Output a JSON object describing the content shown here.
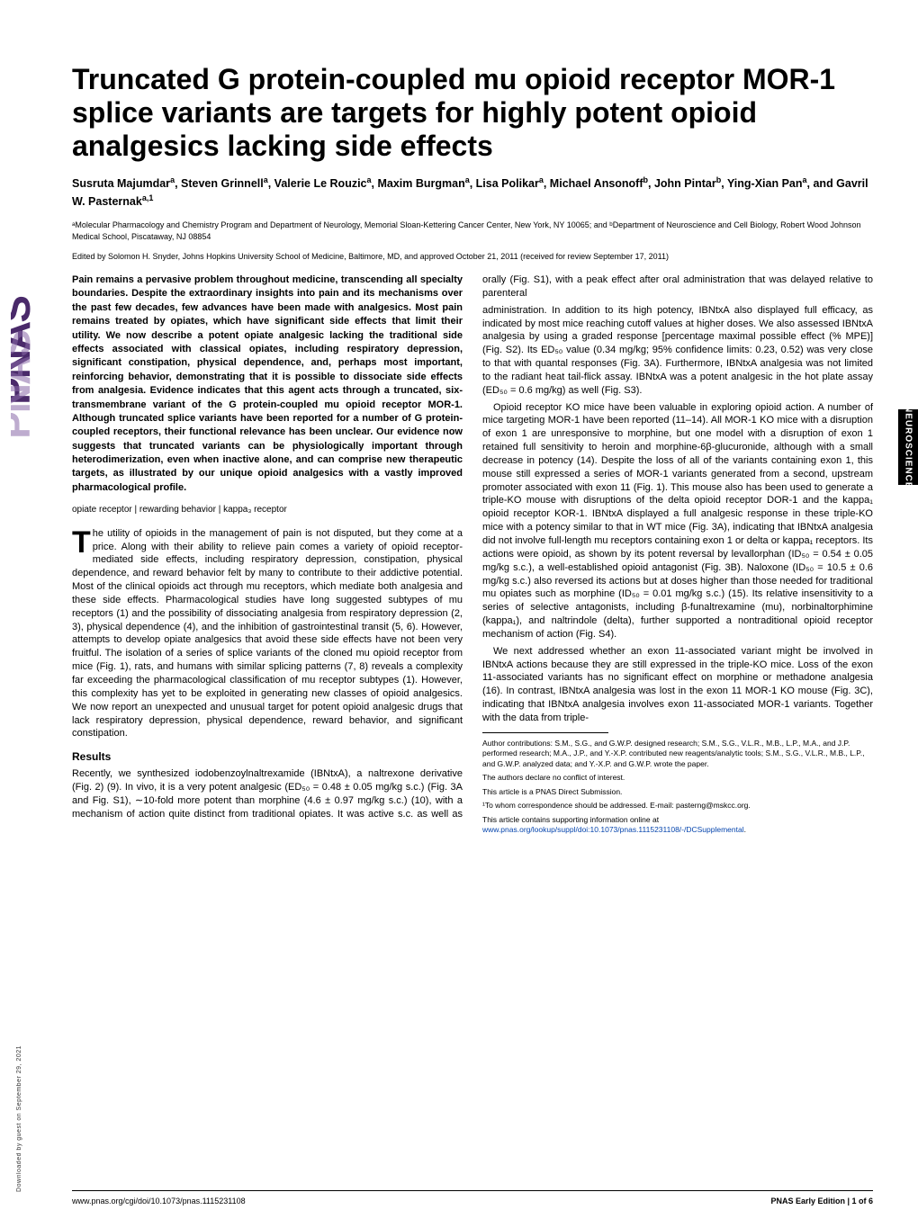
{
  "journal": {
    "logo_text": "PNAS",
    "logo_fill": "#4a2a6a",
    "side_tab": "NEUROSCIENCE",
    "downloaded": "Downloaded by guest on September 29, 2021"
  },
  "title": "Truncated G protein-coupled mu opioid receptor MOR-1 splice variants are targets for highly potent opioid analgesics lacking side effects",
  "authors_html": "Susruta Majumdar<sup>a</sup>, Steven Grinnell<sup>a</sup>, Valerie Le Rouzic<sup>a</sup>, Maxim Burgman<sup>a</sup>, Lisa Polikar<sup>a</sup>, Michael Ansonoff<sup>b</sup>, John Pintar<sup>b</sup>, Ying-Xian Pan<sup>a</sup>, and Gavril W. Pasternak<sup>a,1</sup>",
  "affiliations": "ᵃMolecular Pharmacology and Chemistry Program and Department of Neurology, Memorial Sloan-Kettering Cancer Center, New York, NY 10065; and ᵇDepartment of Neuroscience and Cell Biology, Robert Wood Johnson Medical School, Piscataway, NJ 08854",
  "edited": "Edited by Solomon H. Snyder, Johns Hopkins University School of Medicine, Baltimore, MD, and approved October 21, 2011 (received for review September 17, 2011)",
  "abstract": "Pain remains a pervasive problem throughout medicine, transcending all specialty boundaries. Despite the extraordinary insights into pain and its mechanisms over the past few decades, few advances have been made with analgesics. Most pain remains treated by opiates, which have significant side effects that limit their utility. We now describe a potent opiate analgesic lacking the traditional side effects associated with classical opiates, including respiratory depression, significant constipation, physical dependence, and, perhaps most important, reinforcing behavior, demonstrating that it is possible to dissociate side effects from analgesia. Evidence indicates that this agent acts through a truncated, six-transmembrane variant of the G protein-coupled mu opioid receptor MOR-1. Although truncated splice variants have been reported for a number of G protein-coupled receptors, their functional relevance has been unclear. Our evidence now suggests that truncated variants can be physiologically important through heterodimerization, even when inactive alone, and can comprise new therapeutic targets, as illustrated by our unique opioid analgesics with a vastly improved pharmacological profile.",
  "keywords": "opiate receptor | rewarding behavior | kappa₃ receptor",
  "intro_first_letter": "T",
  "intro_p1": "he utility of opioids in the management of pain is not disputed, but they come at a price. Along with their ability to relieve pain comes a variety of opioid receptor-mediated side effects, including respiratory depression, constipation, physical dependence, and reward behavior felt by many to contribute to their addictive potential. Most of the clinical opioids act through mu receptors, which mediate both analgesia and these side effects. Pharmacological studies have long suggested subtypes of mu receptors (1) and the possibility of dissociating analgesia from respiratory depression (2, 3), physical dependence (4), and the inhibition of gastrointestinal transit (5, 6). However, attempts to develop opiate analgesics that avoid these side effects have not been very fruitful. The isolation of a series of splice variants of the cloned mu opioid receptor from mice (Fig. 1), rats, and humans with similar splicing patterns (7, 8) reveals a complexity far exceeding the pharmacological classification of mu receptor subtypes (1). However, this complexity has yet to be exploited in generating new classes of opioid analgesics. We now report an unexpected and unusual target for potent opioid analgesic drugs that lack respiratory depression, physical dependence, reward behavior, and significant constipation.",
  "results_heading": "Results",
  "results_p1": "Recently, we synthesized iodobenzoylnaltrexamide (IBNtxA), a naltrexone derivative (Fig. 2) (9). In vivo, it is a very potent analgesic (ED₅₀ = 0.48 ± 0.05 mg/kg s.c.) (Fig. 3A and Fig. S1), ∼10-fold more potent than morphine (4.6 ± 0.97 mg/kg s.c.) (10), with a mechanism of action quite distinct from traditional opiates. It was active s.c. as well as orally (Fig. S1), with a peak effect after oral administration that was delayed relative to parenteral",
  "col2_p1": "administration. In addition to its high potency, IBNtxA also displayed full efficacy, as indicated by most mice reaching cutoff values at higher doses. We also assessed IBNtxA analgesia by using a graded response [percentage maximal possible effect (% MPE)] (Fig. S2). Its ED₅₀ value (0.34 mg/kg; 95% confidence limits: 0.23, 0.52) was very close to that with quantal responses (Fig. 3A). Furthermore, IBNtxA analgesia was not limited to the radiant heat tail-flick assay. IBNtxA was a potent analgesic in the hot plate assay (ED₅₀ = 0.6 mg/kg) as well (Fig. S3).",
  "col2_p2": "Opioid receptor KO mice have been valuable in exploring opioid action. A number of mice targeting MOR-1 have been reported (11–14). All MOR-1 KO mice with a disruption of exon 1 are unresponsive to morphine, but one model with a disruption of exon 1 retained full sensitivity to heroin and morphine-6β-glucuronide, although with a small decrease in potency (14). Despite the loss of all of the variants containing exon 1, this mouse still expressed a series of MOR-1 variants generated from a second, upstream promoter associated with exon 11 (Fig. 1). This mouse also has been used to generate a triple-KO mouse with disruptions of the delta opioid receptor DOR-1 and the kappa₁ opioid receptor KOR-1. IBNtxA displayed a full analgesic response in these triple-KO mice with a potency similar to that in WT mice (Fig. 3A), indicating that IBNtxA analgesia did not involve full-length mu receptors containing exon 1 or delta or kappa₁ receptors. Its actions were opioid, as shown by its potent reversal by levallorphan (ID₅₀ = 0.54 ± 0.05 mg/kg s.c.), a well-established opioid antagonist (Fig. 3B). Naloxone (ID₅₀ = 10.5 ± 0.6 mg/kg s.c.) also reversed its actions but at doses higher than those needed for traditional mu opiates such as morphine (ID₅₀ = 0.01 mg/kg s.c.) (15). Its relative insensitivity to a series of selective antagonists, including β-funaltrexamine (mu), norbinaltorphimine (kappa₁), and naltrindole (delta), further supported a nontraditional opioid receptor mechanism of action (Fig. S4).",
  "col2_p3": "We next addressed whether an exon 11-associated variant might be involved in IBNtxA actions because they are still expressed in the triple-KO mice. Loss of the exon 11-associated variants has no significant effect on morphine or methadone analgesia (16). In contrast, IBNtxA analgesia was lost in the exon 11 MOR-1 KO mouse (Fig. 3C), indicating that IBNtxA analgesia involves exon 11-associated MOR-1 variants. Together with the data from triple-",
  "footnotes": {
    "contrib": "Author contributions: S.M., S.G., and G.W.P. designed research; S.M., S.G., V.L.R., M.B., L.P., M.A., and J.P. performed research; M.A., J.P., and Y.-X.P. contributed new reagents/analytic tools; S.M., S.G., V.L.R., M.B., L.P., and G.W.P. analyzed data; and Y.-X.P. and G.W.P. wrote the paper.",
    "conflict": "The authors declare no conflict of interest.",
    "direct": "This article is a PNAS Direct Submission.",
    "corr": "¹To whom correspondence should be addressed. E-mail: pasterng@mskcc.org.",
    "supp": "This article contains supporting information online at ",
    "supp_link": "www.pnas.org/lookup/suppl/doi:10.1073/pnas.1115231108/-/DCSupplemental",
    "supp_link_color": "#0645AD"
  },
  "footer": {
    "left": "www.pnas.org/cgi/doi/10.1073/pnas.1115231108",
    "right": "PNAS Early Edition | 1 of 6"
  }
}
